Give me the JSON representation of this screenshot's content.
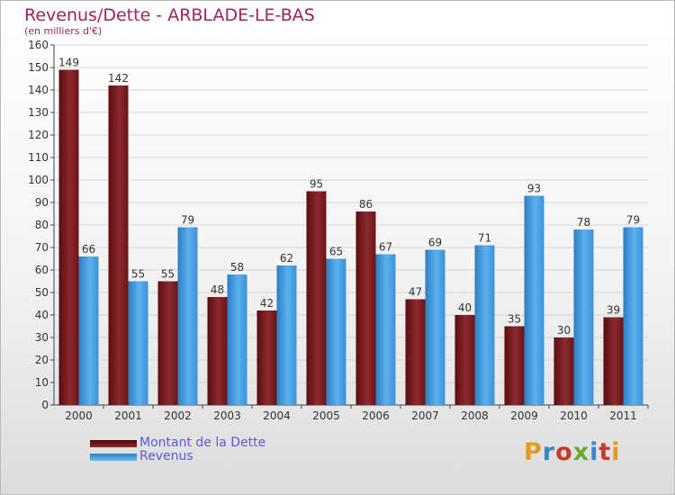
{
  "header": {
    "title": "Revenus/Dette - ARBLADE-LE-BAS",
    "subtitle": "(en milliers d'€)"
  },
  "legend": {
    "items": [
      {
        "label": "Montant de la Dette",
        "color": "#7a1a1f"
      },
      {
        "label": "Revenus",
        "color": "#3d9be2"
      }
    ]
  },
  "logo": {
    "text": "Proxiti"
  },
  "chart_data": {
    "type": "bar",
    "title": "Revenus/Dette - ARBLADE-LE-BAS",
    "subtitle": "(en milliers d'€)",
    "categories": [
      "2000",
      "2001",
      "2002",
      "2003",
      "2004",
      "2005",
      "2006",
      "2007",
      "2008",
      "2009",
      "2010",
      "2011"
    ],
    "series": [
      {
        "name": "Montant de la Dette",
        "color": "#7a1a1f",
        "values": [
          149,
          142,
          55,
          48,
          42,
          95,
          86,
          47,
          40,
          35,
          30,
          39
        ]
      },
      {
        "name": "Revenus",
        "color": "#3d9be2",
        "values": [
          66,
          55,
          79,
          58,
          62,
          65,
          67,
          69,
          71,
          93,
          78,
          79
        ]
      }
    ],
    "ylim": [
      0,
      160
    ],
    "yticks": [
      0,
      10,
      20,
      30,
      40,
      50,
      60,
      70,
      80,
      90,
      100,
      110,
      120,
      130,
      140,
      150,
      160
    ],
    "grid": true,
    "legend_position": "bottom-left"
  }
}
